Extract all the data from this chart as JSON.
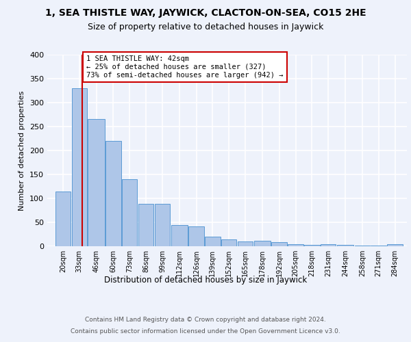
{
  "title": "1, SEA THISTLE WAY, JAYWICK, CLACTON-ON-SEA, CO15 2HE",
  "subtitle": "Size of property relative to detached houses in Jaywick",
  "xlabel": "Distribution of detached houses by size in Jaywick",
  "ylabel": "Number of detached properties",
  "bar_color": "#aec6e8",
  "bar_edge_color": "#5b9bd5",
  "background_color": "#eef2fb",
  "grid_color": "#ffffff",
  "annotation_box_color": "#ffffff",
  "annotation_box_edge": "#cc0000",
  "red_line_x": 42,
  "annotation_title": "1 SEA THISTLE WAY: 42sqm",
  "annotation_line1": "← 25% of detached houses are smaller (327)",
  "annotation_line2": "73% of semi-detached houses are larger (942) →",
  "categories": [
    "20sqm",
    "33sqm",
    "46sqm",
    "60sqm",
    "73sqm",
    "86sqm",
    "99sqm",
    "112sqm",
    "126sqm",
    "139sqm",
    "152sqm",
    "165sqm",
    "178sqm",
    "192sqm",
    "205sqm",
    "218sqm",
    "231sqm",
    "244sqm",
    "258sqm",
    "271sqm",
    "284sqm"
  ],
  "bar_lefts": [
    20,
    33,
    46,
    60,
    73,
    86,
    99,
    112,
    126,
    139,
    152,
    165,
    178,
    192,
    205,
    218,
    231,
    244,
    258,
    271,
    284
  ],
  "bar_widths": [
    13,
    13,
    14,
    13,
    13,
    13,
    13,
    14,
    13,
    13,
    13,
    13,
    14,
    13,
    13,
    13,
    13,
    14,
    13,
    13,
    13
  ],
  "bar_heights": [
    115,
    330,
    265,
    220,
    140,
    88,
    88,
    45,
    42,
    20,
    15,
    10,
    12,
    8,
    5,
    3,
    5,
    3,
    2,
    2,
    5
  ],
  "ylim": [
    0,
    400
  ],
  "xlim": [
    14,
    300
  ],
  "yticks": [
    0,
    50,
    100,
    150,
    200,
    250,
    300,
    350,
    400
  ],
  "footer1": "Contains HM Land Registry data © Crown copyright and database right 2024.",
  "footer2": "Contains public sector information licensed under the Open Government Licence v3.0."
}
